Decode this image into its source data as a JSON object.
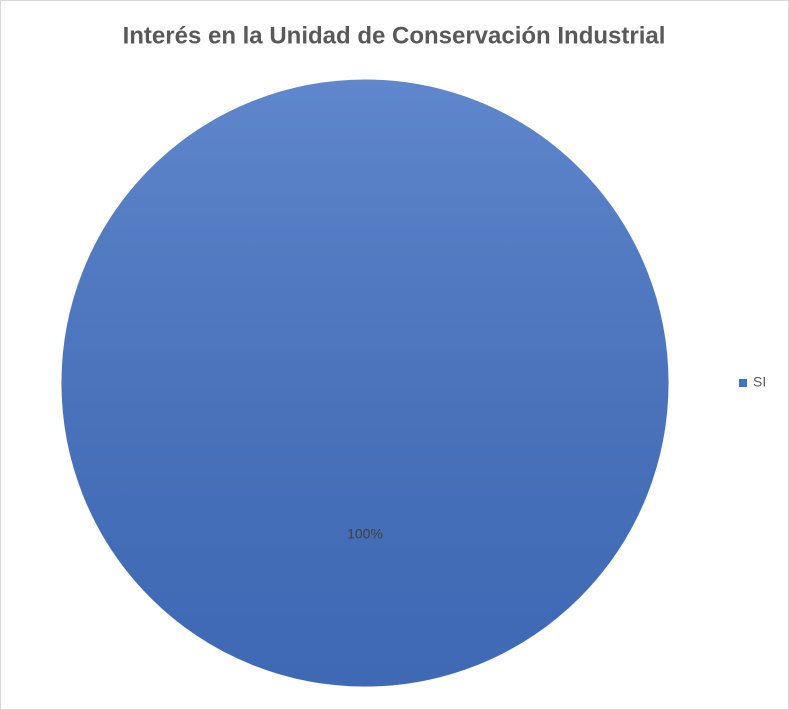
{
  "chart_data": {
    "type": "pie",
    "title": "Interés en la Unidad de Conservación Industrial",
    "categories": [
      "SI"
    ],
    "values": [
      100
    ],
    "value_labels": [
      "100%"
    ],
    "colors": [
      "#4472c4"
    ],
    "legend": "right"
  }
}
